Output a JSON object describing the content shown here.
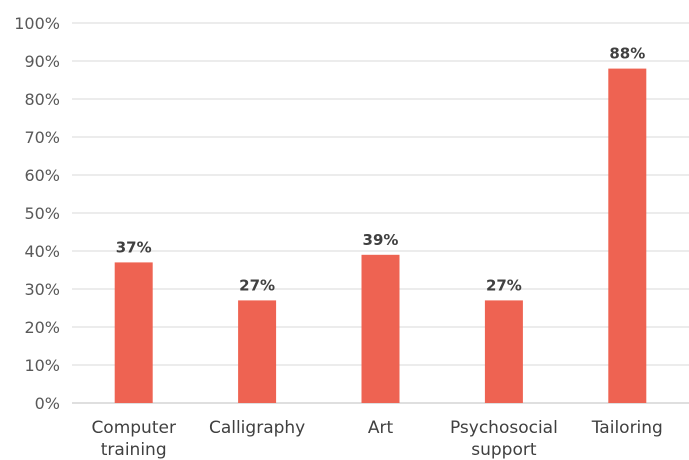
{
  "chart_data": {
    "type": "bar",
    "categories": [
      "Computer training",
      "Calligraphy",
      "Art",
      "Psychosocial support",
      "Tailoring"
    ],
    "category_lines": [
      [
        "Computer",
        "training"
      ],
      [
        "Calligraphy"
      ],
      [
        "Art"
      ],
      [
        "Psychosocial",
        "support"
      ],
      [
        "Tailoring"
      ]
    ],
    "values": [
      37,
      27,
      39,
      27,
      88
    ],
    "data_labels": [
      "37%",
      "27%",
      "39%",
      "27%",
      "88%"
    ],
    "title": "",
    "xlabel": "",
    "ylabel": "",
    "ylim": [
      0,
      100
    ],
    "yticks": [
      0,
      10,
      20,
      30,
      40,
      50,
      60,
      70,
      80,
      90,
      100
    ],
    "ytick_labels": [
      "0%",
      "10%",
      "20%",
      "30%",
      "40%",
      "50%",
      "60%",
      "70%",
      "80%",
      "90%",
      "100%"
    ],
    "grid": true,
    "legend": "none",
    "bar_color": "#ee6352"
  }
}
